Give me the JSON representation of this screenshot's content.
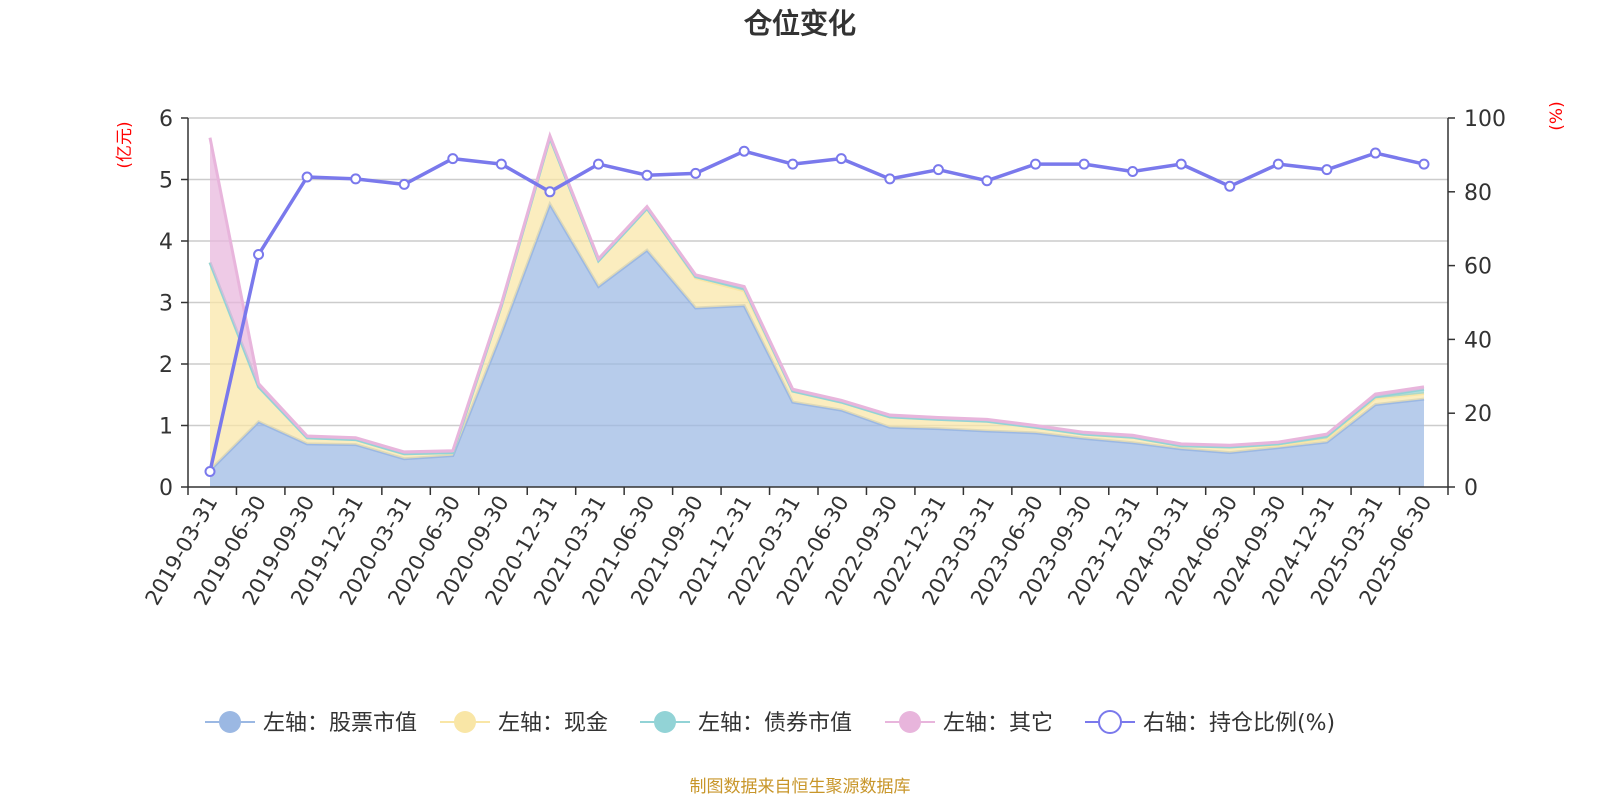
{
  "title": "仓位变化",
  "left_unit": "(亿元)",
  "right_unit": "(%)",
  "source": "制图数据来自恒生聚源数据库",
  "chart_data": {
    "type": "area",
    "title": "仓位变化",
    "categories": [
      "2019-03-31",
      "2019-06-30",
      "2019-09-30",
      "2019-12-31",
      "2020-03-31",
      "2020-06-30",
      "2020-09-30",
      "2020-12-31",
      "2021-03-31",
      "2021-06-30",
      "2021-09-30",
      "2021-12-31",
      "2022-03-31",
      "2022-06-30",
      "2022-09-30",
      "2022-12-31",
      "2023-03-31",
      "2023-06-30",
      "2023-09-30",
      "2023-12-31",
      "2024-03-31",
      "2024-06-30",
      "2024-09-30",
      "2024-12-31",
      "2025-03-31",
      "2025-06-30"
    ],
    "left_axis": {
      "ylim": [
        0,
        6
      ],
      "ticks": [
        0,
        1,
        2,
        3,
        4,
        5,
        6
      ],
      "label": "(亿元)"
    },
    "right_axis": {
      "ylim": [
        0,
        100
      ],
      "ticks": [
        0,
        20,
        40,
        60,
        80,
        100
      ],
      "label": "(%)"
    },
    "grid": true,
    "legend_position": "bottom",
    "series": [
      {
        "name": "左轴：股票市值",
        "axis": "left",
        "type": "area",
        "color": "#9bb8e3",
        "values": [
          0.27,
          1.06,
          0.7,
          0.69,
          0.46,
          0.51,
          2.5,
          4.6,
          3.26,
          3.85,
          2.91,
          2.95,
          1.38,
          1.25,
          0.97,
          0.95,
          0.91,
          0.88,
          0.79,
          0.72,
          0.62,
          0.56,
          0.64,
          0.73,
          1.34,
          1.43
        ]
      },
      {
        "name": "左轴：现金",
        "axis": "left",
        "type": "area",
        "color": "#f9e6a6",
        "values": [
          3.38,
          0.57,
          0.1,
          0.08,
          0.08,
          0.05,
          0.45,
          1.08,
          0.42,
          0.68,
          0.49,
          0.24,
          0.18,
          0.13,
          0.17,
          0.15,
          0.16,
          0.09,
          0.07,
          0.09,
          0.05,
          0.09,
          0.04,
          0.06,
          0.1,
          0.09
        ]
      },
      {
        "name": "左轴：债券市值",
        "axis": "left",
        "type": "area",
        "color": "#92d3d6",
        "values": [
          0,
          0,
          0,
          0,
          0,
          0,
          0,
          0,
          0,
          0,
          0.02,
          0.04,
          0,
          0,
          0,
          0,
          0,
          0,
          0,
          0,
          0,
          0,
          0.02,
          0.04,
          0.03,
          0.07
        ]
      },
      {
        "name": "左轴：其它",
        "axis": "left",
        "type": "area",
        "color": "#e8b5dc",
        "values": [
          2.03,
          0.05,
          0.03,
          0.03,
          0.03,
          0.03,
          0.03,
          0.03,
          0.03,
          0.03,
          0.03,
          0.03,
          0.03,
          0.03,
          0.03,
          0.03,
          0.03,
          0.03,
          0.03,
          0.03,
          0.03,
          0.03,
          0.03,
          0.03,
          0.04,
          0.04
        ]
      },
      {
        "name": "右轴：持仓比例(%)",
        "axis": "right",
        "type": "line",
        "color": "#7a79ec",
        "values": [
          4.2,
          63.0,
          84.0,
          83.5,
          82.0,
          89.0,
          87.5,
          80.0,
          87.5,
          84.5,
          85.0,
          91.0,
          87.5,
          89.0,
          83.5,
          86.0,
          83.0,
          87.5,
          87.5,
          85.5,
          87.5,
          81.5,
          87.5,
          86.0,
          90.5,
          87.5
        ]
      }
    ]
  }
}
